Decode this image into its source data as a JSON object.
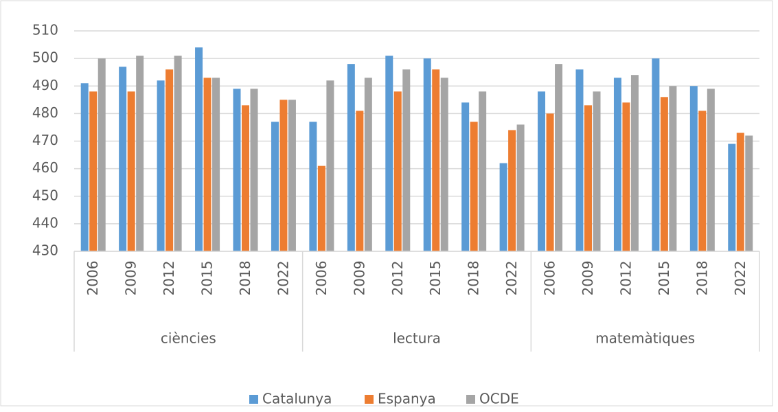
{
  "chart_data": {
    "type": "bar",
    "groups": [
      "ciències",
      "lectura",
      "matemàtiques"
    ],
    "categories": [
      "2006",
      "2009",
      "2012",
      "2015",
      "2018",
      "2022",
      "2006",
      "2009",
      "2012",
      "2015",
      "2018",
      "2022",
      "2006",
      "2009",
      "2012",
      "2015",
      "2018",
      "2022"
    ],
    "series": [
      {
        "name": "Catalunya",
        "color": "#5b9bd5",
        "values": [
          491,
          497,
          492,
          504,
          489,
          477,
          477,
          498,
          501,
          500,
          484,
          462,
          488,
          496,
          493,
          500,
          490,
          469
        ]
      },
      {
        "name": "Espanya",
        "color": "#ed7d31",
        "values": [
          488,
          488,
          496,
          493,
          483,
          485,
          461,
          481,
          488,
          496,
          477,
          474,
          480,
          483,
          484,
          486,
          481,
          473
        ]
      },
      {
        "name": "OCDE",
        "color": "#a5a5a5",
        "values": [
          500,
          501,
          501,
          493,
          489,
          485,
          492,
          493,
          496,
          493,
          488,
          476,
          498,
          488,
          494,
          490,
          489,
          472
        ]
      }
    ],
    "ylim": [
      430,
      510
    ],
    "yticks": [
      430,
      440,
      450,
      460,
      470,
      480,
      490,
      500,
      510
    ],
    "grid": true,
    "legend": "bottom"
  }
}
